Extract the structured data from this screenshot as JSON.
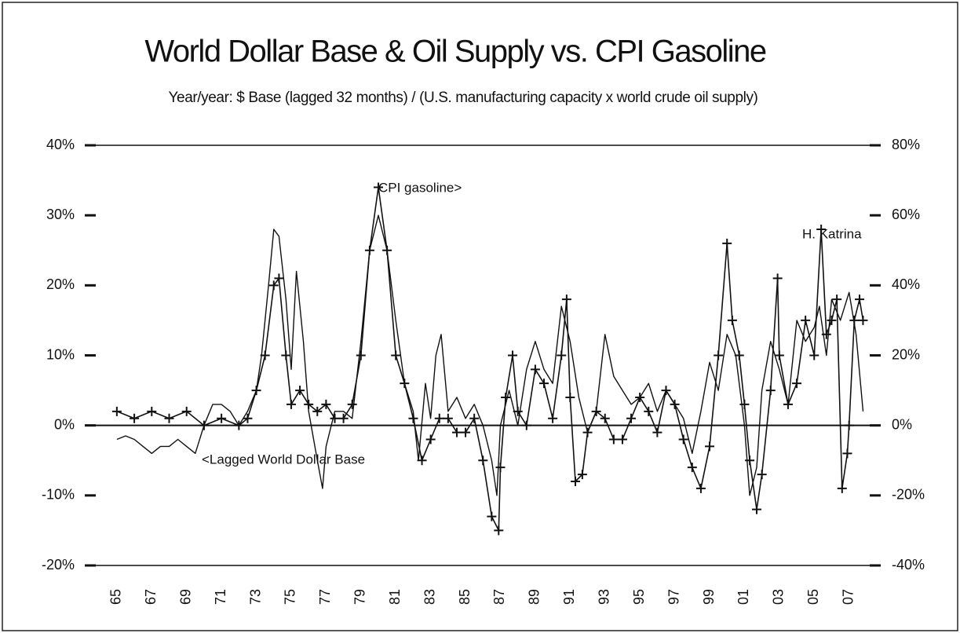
{
  "chart_data": {
    "type": "line",
    "title": "World Dollar Base & Oil Supply vs. CPI Gasoline",
    "subtitle": "Year/year: $ Base (lagged 32 months) / (U.S. manufacturing capacity x world crude oil supply)",
    "annotations": [
      "H. Katrina"
    ],
    "xlim": [
      1963.7,
      2008.5
    ],
    "xticks": [
      {
        "value": 1965,
        "label": "65"
      },
      {
        "value": 1967,
        "label": "67"
      },
      {
        "value": 1969,
        "label": "69"
      },
      {
        "value": 1971,
        "label": "71"
      },
      {
        "value": 1973,
        "label": "73"
      },
      {
        "value": 1975,
        "label": "75"
      },
      {
        "value": 1977,
        "label": "77"
      },
      {
        "value": 1979,
        "label": "79"
      },
      {
        "value": 1981,
        "label": "81"
      },
      {
        "value": 1983,
        "label": "83"
      },
      {
        "value": 1985,
        "label": "85"
      },
      {
        "value": 1987,
        "label": "87"
      },
      {
        "value": 1989,
        "label": "89"
      },
      {
        "value": 1991,
        "label": "91"
      },
      {
        "value": 1993,
        "label": "93"
      },
      {
        "value": 1995,
        "label": "95"
      },
      {
        "value": 1997,
        "label": "97"
      },
      {
        "value": 1999,
        "label": "99"
      },
      {
        "value": 2001,
        "label": "01"
      },
      {
        "value": 2003,
        "label": "03"
      },
      {
        "value": 2005,
        "label": "05"
      },
      {
        "value": 2007,
        "label": "07"
      }
    ],
    "ylim": [
      -20,
      40
    ],
    "yticks": [
      {
        "value": -20,
        "label": "-20%"
      },
      {
        "value": -10,
        "label": "-10%"
      },
      {
        "value": 0,
        "label": "0%"
      },
      {
        "value": 10,
        "label": "10%"
      },
      {
        "value": 20,
        "label": "20%"
      },
      {
        "value": 30,
        "label": "30%"
      },
      {
        "value": 40,
        "label": "40%"
      }
    ],
    "y2lim": [
      -40,
      80
    ],
    "y2ticks": [
      {
        "value": -40,
        "label": "-40%"
      },
      {
        "value": -20,
        "label": "-20%"
      },
      {
        "value": 0,
        "label": "0%"
      },
      {
        "value": 20,
        "label": "20%"
      },
      {
        "value": 40,
        "label": "40%"
      },
      {
        "value": 60,
        "label": "60%"
      },
      {
        "value": 80,
        "label": "80%"
      }
    ],
    "series": [
      {
        "name": "<Lagged World Dollar Base",
        "color": "#111111",
        "axis": "y",
        "x": [
          1965,
          1965.5,
          1966,
          1966.5,
          1967,
          1967.5,
          1968,
          1968.5,
          1969,
          1969.5,
          1970,
          1970.5,
          1971,
          1971.5,
          1972,
          1972.5,
          1973,
          1973.3,
          1973.7,
          1974,
          1974.3,
          1974.7,
          1975,
          1975.3,
          1975.7,
          1976,
          1976.5,
          1976.8,
          1977,
          1977.5,
          1978,
          1978.5,
          1979,
          1979.5,
          1980,
          1980.5,
          1981,
          1981.5,
          1982,
          1982.3,
          1982.7,
          1983,
          1983.3,
          1983.6,
          1984,
          1984.5,
          1985,
          1985.5,
          1986,
          1986.5,
          1986.8,
          1987,
          1987.5,
          1988,
          1988.5,
          1989,
          1989.5,
          1990,
          1990.5,
          1991,
          1991.5,
          1992,
          1992.5,
          1993,
          1993.5,
          1994,
          1994.5,
          1995,
          1995.5,
          1996,
          1996.5,
          1997,
          1997.5,
          1998,
          1998.5,
          1999,
          1999.5,
          2000,
          2000.5,
          2001,
          2001.3,
          2001.7,
          2002,
          2002.5,
          2003,
          2003.5,
          2004,
          2004.5,
          2005,
          2005.3,
          2005.7,
          2006,
          2006.5,
          2007,
          2007.4,
          2007.8
        ],
        "values": [
          -2,
          -1.5,
          -2,
          -3,
          -4,
          -3,
          -3,
          -2,
          -3,
          -4,
          0,
          3,
          3,
          2,
          0,
          2,
          5,
          10,
          20,
          28,
          27,
          18,
          8,
          22,
          12,
          2,
          -5,
          -9,
          -3,
          2,
          2,
          1,
          12,
          25,
          30,
          25,
          15,
          6,
          2,
          -5,
          6,
          1,
          10,
          13,
          2,
          4,
          1,
          3,
          0,
          -5,
          -10,
          0,
          5,
          0,
          8,
          12,
          8,
          6,
          17,
          12,
          4,
          -1,
          2,
          13,
          7,
          5,
          3,
          4,
          6,
          2,
          5,
          3,
          1,
          -4,
          2,
          9,
          5,
          13,
          10,
          0,
          -10,
          -6,
          5,
          12,
          8,
          3,
          15,
          12,
          14,
          17,
          10,
          18,
          15,
          19,
          13,
          2
        ]
      },
      {
        "name": "CPI gasoline>",
        "color": "#111111",
        "axis": "y2",
        "marker": "plus",
        "x": [
          1965,
          1966,
          1967,
          1968,
          1969,
          1970,
          1971,
          1972,
          1972.5,
          1973,
          1973.5,
          1974,
          1974.3,
          1974.7,
          1975,
          1975.5,
          1976,
          1976.5,
          1977,
          1977.5,
          1978,
          1978.5,
          1979,
          1979.5,
          1980,
          1980.5,
          1981,
          1981.5,
          1982,
          1982.5,
          1983,
          1983.5,
          1984,
          1984.5,
          1985,
          1985.5,
          1986,
          1986.5,
          1986.9,
          1987,
          1987.3,
          1987.7,
          1988,
          1988.5,
          1989,
          1989.5,
          1990,
          1990.5,
          1990.8,
          1991,
          1991.3,
          1991.7,
          1992,
          1992.5,
          1993,
          1993.5,
          1994,
          1994.5,
          1995,
          1995.5,
          1996,
          1996.5,
          1997,
          1997.5,
          1998,
          1998.5,
          1999,
          1999.5,
          2000,
          2000.3,
          2000.7,
          2001,
          2001.3,
          2001.7,
          2002,
          2002.5,
          2002.9,
          2003,
          2003.5,
          2004,
          2004.5,
          2005,
          2005.4,
          2005.7,
          2006,
          2006.3,
          2006.6,
          2006.9,
          2007,
          2007.3,
          2007.6,
          2007.8
        ],
        "values": [
          4,
          2,
          4,
          2,
          4,
          0,
          2,
          0,
          2,
          10,
          20,
          40,
          42,
          20,
          6,
          10,
          6,
          4,
          6,
          2,
          2,
          6,
          20,
          50,
          68,
          50,
          20,
          12,
          2,
          -10,
          -4,
          2,
          2,
          -2,
          -2,
          2,
          -10,
          -26,
          -30,
          -12,
          8,
          20,
          4,
          0,
          16,
          12,
          2,
          20,
          36,
          8,
          -16,
          -14,
          -2,
          4,
          2,
          -4,
          -4,
          2,
          8,
          4,
          -2,
          10,
          6,
          -4,
          -12,
          -18,
          -6,
          20,
          52,
          30,
          20,
          6,
          -10,
          -24,
          -14,
          10,
          42,
          20,
          6,
          12,
          30,
          20,
          56,
          26,
          30,
          36,
          -18,
          -8,
          0,
          30,
          36,
          30
        ]
      }
    ]
  }
}
